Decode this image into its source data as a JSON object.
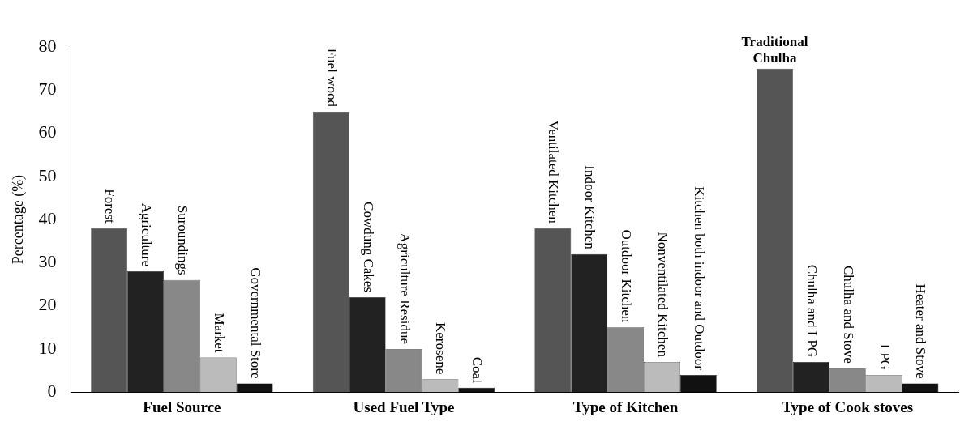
{
  "chart_data": {
    "type": "bar",
    "ylabel": "Percentage (%)",
    "categories": [
      "Fuel Source",
      "Used Fuel Type",
      "Type of Kitchen",
      "Type of Cook stoves"
    ],
    "series": [
      {
        "color": "#555555",
        "values": [
          38,
          65,
          38,
          75
        ]
      },
      {
        "color": "#222222",
        "values": [
          28,
          22,
          32,
          7
        ]
      },
      {
        "color": "#888888",
        "values": [
          26,
          10,
          15,
          5.5
        ]
      },
      {
        "color": "#bbbbbb",
        "values": [
          8,
          3,
          7,
          4
        ]
      },
      {
        "color": "#111111",
        "values": [
          2,
          1,
          4,
          2
        ]
      }
    ],
    "ylim": [
      0,
      80
    ],
    "yticks": [
      0,
      10,
      20,
      30,
      40,
      50,
      60,
      70,
      80
    ],
    "grid": false,
    "legend": false,
    "annotations": [
      "Forest",
      "Agriculture",
      "Suroundings",
      "Market",
      "Governmental Store",
      "Fuel wood",
      "Cowdung Cakes",
      "Agriculture Residue",
      "Kerosene",
      "Coal",
      "Ventilated Kitchen",
      "Indoor Kitchen",
      "Outdoor Kitchen",
      "Nonventilated Kitchen",
      "Kitchen both indoor and Outdoor",
      "Traditional Chulha",
      "Chulha and LPG",
      "Chulha and Stove",
      "LPG",
      "Heater and Stove"
    ]
  }
}
